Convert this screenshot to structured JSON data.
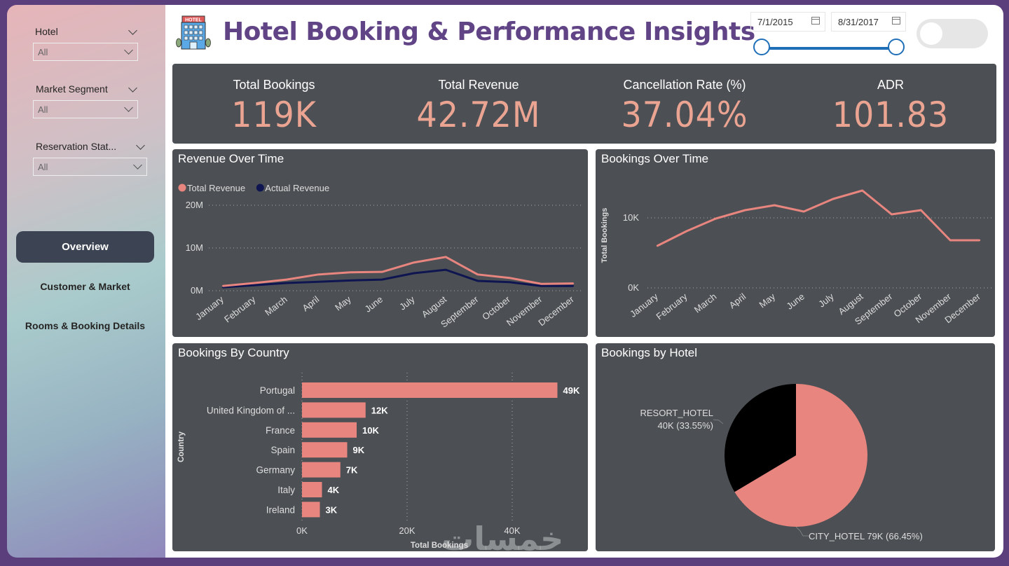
{
  "header": {
    "title": "Hotel Booking & Performance Insights",
    "logo_icon": "hotel-building-icon"
  },
  "filters": {
    "slicers": [
      {
        "label": "Hotel",
        "value": "All"
      },
      {
        "label": "Market Segment",
        "value": "All"
      },
      {
        "label": "Reservation Stat...",
        "value": "All"
      }
    ],
    "date_range": {
      "start": "7/1/2015",
      "end": "8/31/2017",
      "icon": "calendar-icon"
    },
    "toggle": {
      "state": "off"
    }
  },
  "nav": {
    "items": [
      {
        "label": "Overview",
        "active": true
      },
      {
        "label": "Customer & Market",
        "active": false
      },
      {
        "label": "Rooms & Booking Details",
        "active": false
      }
    ]
  },
  "kpis": [
    {
      "label": "Total Bookings",
      "value": "119K"
    },
    {
      "label": "Total Revenue",
      "value": "42.72M"
    },
    {
      "label": "Cancellation Rate (%)",
      "value": "37.04%"
    },
    {
      "label": "ADR",
      "value": "101.83"
    }
  ],
  "colors": {
    "accent": "#e8857f",
    "kpi_value": "#eba492",
    "actual_revenue": "#0e1550",
    "card_bg": "#4c5054",
    "title": "#614486",
    "resort_slice": "#000000"
  },
  "watermark": "خمسات",
  "chart_data": [
    {
      "type": "line",
      "title": "Revenue Over Time",
      "categories": [
        "January",
        "February",
        "March",
        "April",
        "May",
        "June",
        "July",
        "August",
        "September",
        "October",
        "November",
        "December"
      ],
      "series": [
        {
          "name": "Total Revenue",
          "color": "#e8857f",
          "values": [
            1.1,
            1.8,
            2.6,
            3.8,
            4.3,
            4.4,
            6.6,
            7.9,
            3.8,
            3.0,
            1.6,
            1.7
          ]
        },
        {
          "name": "Actual Revenue",
          "color": "#0e1550",
          "values": [
            0.8,
            1.3,
            1.8,
            2.1,
            2.4,
            2.6,
            4.1,
            4.9,
            2.3,
            2.0,
            1.1,
            1.1
          ]
        }
      ],
      "unit": "M",
      "yticks": [
        "0M",
        "10M",
        "20M"
      ],
      "ylim": [
        0,
        20
      ],
      "xlabel": "",
      "ylabel": "",
      "legend": "top-left",
      "grid": true
    },
    {
      "type": "line",
      "title": "Bookings Over Time",
      "categories": [
        "January",
        "February",
        "March",
        "April",
        "May",
        "June",
        "July",
        "August",
        "September",
        "October",
        "November",
        "December"
      ],
      "series": [
        {
          "name": "Total Bookings",
          "color": "#e8857f",
          "values": [
            6.0,
            8.1,
            9.9,
            11.1,
            11.8,
            10.9,
            12.7,
            13.9,
            10.5,
            11.1,
            6.8,
            6.8
          ]
        }
      ],
      "unit": "K",
      "yticks": [
        "0K",
        "10K"
      ],
      "ylim": [
        0,
        15
      ],
      "xlabel": "",
      "ylabel": "Total Bookings",
      "grid": true
    },
    {
      "type": "bar",
      "orientation": "horizontal",
      "title": "Bookings By Country",
      "categories": [
        "Portugal",
        "United Kingdom of ...",
        "France",
        "Spain",
        "Germany",
        "Italy",
        "Ireland"
      ],
      "values": [
        48.6,
        12.1,
        10.4,
        8.6,
        7.3,
        3.8,
        3.4
      ],
      "data_labels": [
        "49K",
        "12K",
        "10K",
        "9K",
        "7K",
        "4K",
        "3K"
      ],
      "xticks": [
        "0K",
        "20K",
        "40K"
      ],
      "xlim": [
        0,
        50
      ],
      "xlabel": "Total Bookings",
      "ylabel": "Country",
      "grid": true
    },
    {
      "type": "pie",
      "title": "Bookings by Hotel",
      "slices": [
        {
          "name": "CITY_HOTEL",
          "value": 79,
          "percent": 66.45,
          "label": "CITY_HOTEL 79K (66.45%)",
          "color": "#e8857f"
        },
        {
          "name": "RESORT_HOTEL",
          "value": 40,
          "percent": 33.55,
          "label_line1": "RESORT_HOTEL",
          "label_line2": "40K (33.55%)",
          "color": "#000000"
        }
      ]
    }
  ]
}
